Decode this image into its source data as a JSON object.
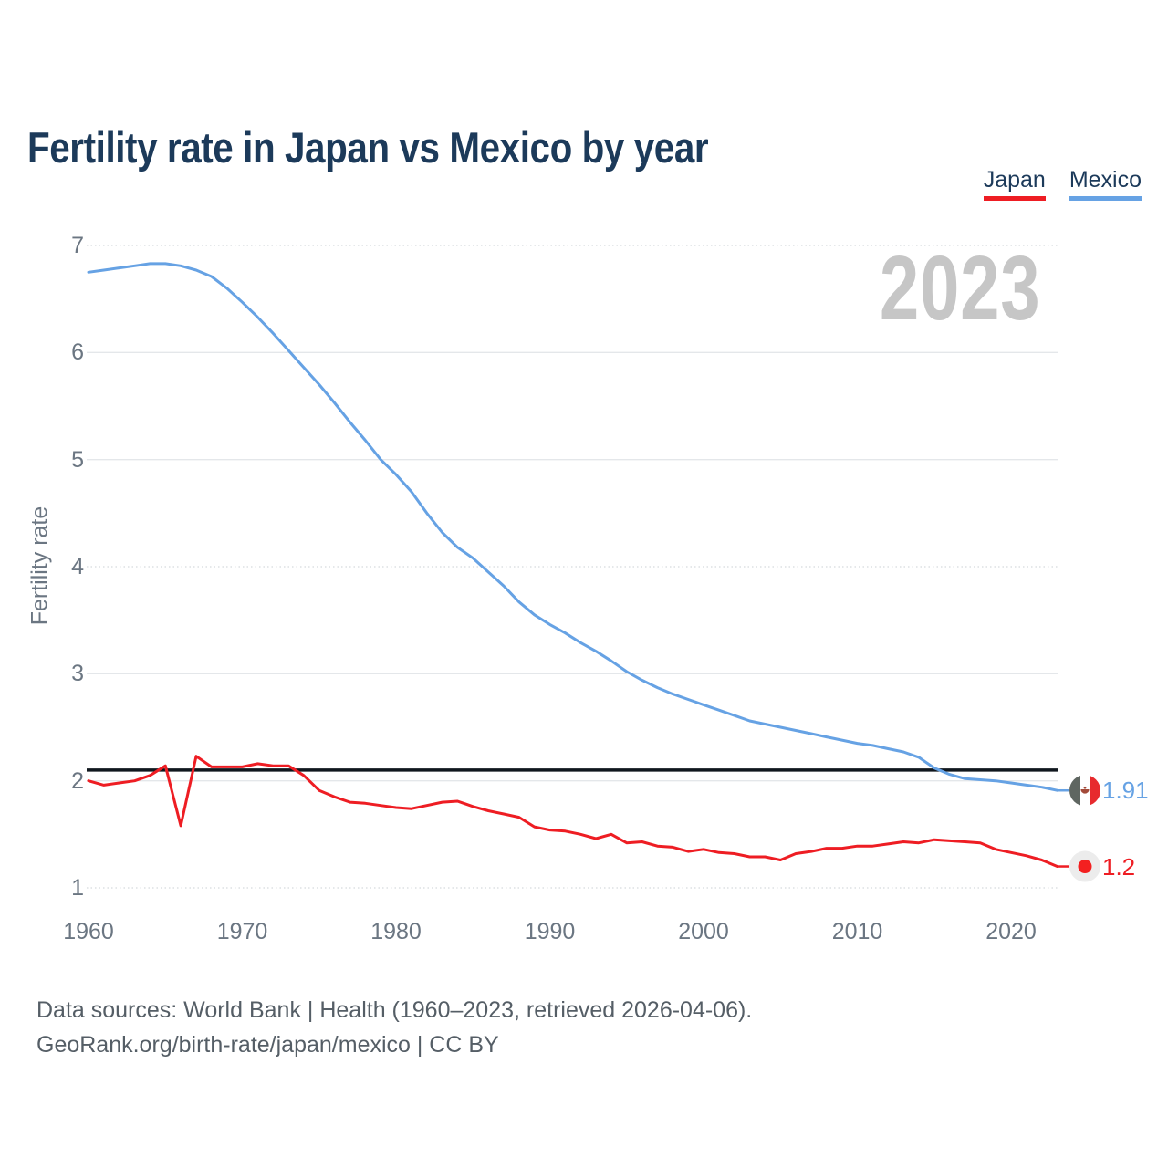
{
  "title": "Fertility rate in Japan vs Mexico by year",
  "legend": [
    {
      "label": "Japan",
      "color": "#EE1D23"
    },
    {
      "label": "Mexico",
      "color": "#66A2E4"
    }
  ],
  "watermark": "2023",
  "footer": {
    "line1": "Data sources: World Bank | Health (1960–2023, retrieved 2026-04-06).",
    "line2": "GeoRank.org/birth-rate/japan/mexico | CC BY"
  },
  "chart_data": {
    "type": "line",
    "title": "Fertility rate in Japan vs Mexico by year",
    "xlabel": "",
    "ylabel": "Fertility rate",
    "xlim": [
      1960,
      2023
    ],
    "ylim": [
      1,
      7
    ],
    "yticks": [
      1,
      2,
      3,
      4,
      5,
      6,
      7
    ],
    "dashed_yticks": [
      7,
      4,
      1
    ],
    "xticks": [
      1960,
      1970,
      1980,
      1990,
      2000,
      2010,
      2020
    ],
    "grid": "horizontal",
    "legend_position": "top-right",
    "reference_line": {
      "value": 2.1,
      "color": "#10171E"
    },
    "years": [
      1960,
      1961,
      1962,
      1963,
      1964,
      1965,
      1966,
      1967,
      1968,
      1969,
      1970,
      1971,
      1972,
      1973,
      1974,
      1975,
      1976,
      1977,
      1978,
      1979,
      1980,
      1981,
      1982,
      1983,
      1984,
      1985,
      1986,
      1987,
      1988,
      1989,
      1990,
      1991,
      1992,
      1993,
      1994,
      1995,
      1996,
      1997,
      1998,
      1999,
      2000,
      2001,
      2002,
      2003,
      2004,
      2005,
      2006,
      2007,
      2008,
      2009,
      2010,
      2011,
      2012,
      2013,
      2014,
      2015,
      2016,
      2017,
      2018,
      2019,
      2020,
      2021,
      2022,
      2023
    ],
    "series": [
      {
        "name": "Japan",
        "color": "#EE1D23",
        "flag": "japan",
        "end_label": "1.2",
        "values": [
          2.0,
          1.96,
          1.98,
          2.0,
          2.05,
          2.14,
          1.58,
          2.23,
          2.13,
          2.13,
          2.13,
          2.16,
          2.14,
          2.14,
          2.05,
          1.91,
          1.85,
          1.8,
          1.79,
          1.77,
          1.75,
          1.74,
          1.77,
          1.8,
          1.81,
          1.76,
          1.72,
          1.69,
          1.66,
          1.57,
          1.54,
          1.53,
          1.5,
          1.46,
          1.5,
          1.42,
          1.43,
          1.39,
          1.38,
          1.34,
          1.36,
          1.33,
          1.32,
          1.29,
          1.29,
          1.26,
          1.32,
          1.34,
          1.37,
          1.37,
          1.39,
          1.39,
          1.41,
          1.43,
          1.42,
          1.45,
          1.44,
          1.43,
          1.42,
          1.36,
          1.33,
          1.3,
          1.26,
          1.2
        ]
      },
      {
        "name": "Mexico",
        "color": "#66A2E4",
        "flag": "mexico",
        "end_label": "1.91",
        "values": [
          6.75,
          6.77,
          6.79,
          6.81,
          6.83,
          6.83,
          6.81,
          6.77,
          6.71,
          6.6,
          6.47,
          6.33,
          6.18,
          6.02,
          5.86,
          5.7,
          5.53,
          5.35,
          5.18,
          5.0,
          4.86,
          4.7,
          4.5,
          4.32,
          4.18,
          4.08,
          3.95,
          3.82,
          3.67,
          3.55,
          3.46,
          3.38,
          3.29,
          3.21,
          3.12,
          3.02,
          2.94,
          2.87,
          2.81,
          2.76,
          2.71,
          2.66,
          2.61,
          2.56,
          2.53,
          2.5,
          2.47,
          2.44,
          2.41,
          2.38,
          2.35,
          2.33,
          2.3,
          2.27,
          2.22,
          2.12,
          2.06,
          2.02,
          2.01,
          2.0,
          1.98,
          1.96,
          1.94,
          1.91
        ]
      }
    ]
  }
}
